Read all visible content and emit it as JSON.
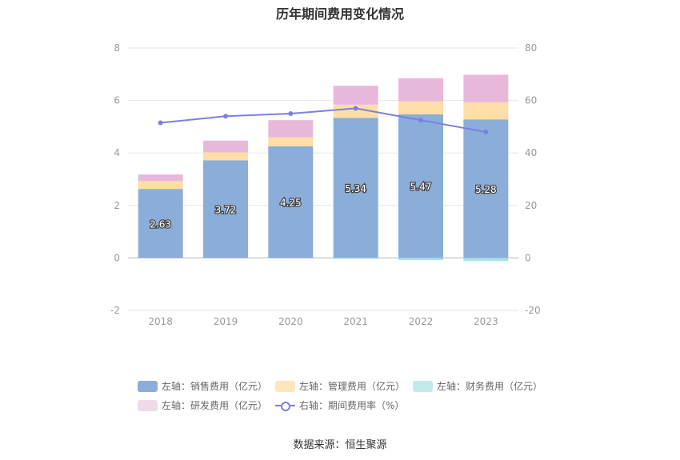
{
  "chart_data": {
    "type": "bar",
    "stacked": true,
    "title": "历年期间费用变化情况",
    "categories": [
      "2018",
      "2019",
      "2020",
      "2021",
      "2022",
      "2023"
    ],
    "left_axis": {
      "ylim": [
        -2,
        8
      ],
      "ticks": [
        "-2",
        "0",
        "2",
        "4",
        "6",
        "8"
      ]
    },
    "right_axis": {
      "ylim": [
        -20,
        80
      ],
      "ticks": [
        "-20",
        "0",
        "20",
        "40",
        "60",
        "80"
      ]
    },
    "grid": true,
    "legend_position": "bottom",
    "series": [
      {
        "name": "左轴：销售费用（亿元）",
        "axis": "left",
        "kind": "bar",
        "color": "#8badd9",
        "values": [
          2.63,
          3.72,
          4.25,
          5.34,
          5.47,
          5.28
        ],
        "data_labels": [
          "2.63",
          "3.72",
          "4.25",
          "5.34",
          "5.47",
          "5.28"
        ]
      },
      {
        "name": "左轴：管理费用（亿元）",
        "axis": "left",
        "kind": "bar",
        "color": "#fddea6",
        "values": [
          0.3,
          0.3,
          0.35,
          0.5,
          0.5,
          0.65
        ]
      },
      {
        "name": "左轴：财务费用（亿元）",
        "axis": "left",
        "kind": "bar",
        "color": "#a8e1e3",
        "values": [
          0.0,
          0.0,
          0.0,
          -0.03,
          -0.08,
          -0.12
        ]
      },
      {
        "name": "左轴：研发费用（亿元）",
        "axis": "left",
        "kind": "bar",
        "color": "#e8b8db",
        "values": [
          0.25,
          0.45,
          0.65,
          0.72,
          0.88,
          1.05
        ]
      },
      {
        "name": "右轴：期间费用率（%）",
        "axis": "right",
        "kind": "line",
        "color": "#7b7fe0",
        "values": [
          51.5,
          54.0,
          55.0,
          57.0,
          52.5,
          48.0
        ]
      }
    ]
  },
  "source": "数据来源：恒生聚源"
}
